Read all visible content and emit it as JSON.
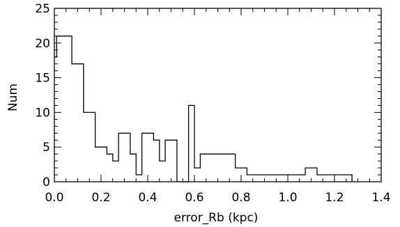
{
  "chart_data": {
    "type": "histogram",
    "title": "",
    "xlabel": "error_Rb (kpc)",
    "ylabel": "Num",
    "xlim": [
      0.0,
      1.4
    ],
    "ylim": [
      0,
      25
    ],
    "grid": false,
    "x_tick_labels": [
      "0.0",
      "0.2",
      "0.4",
      "0.6",
      "0.8",
      "1.0",
      "1.2",
      "1.4"
    ],
    "y_tick_labels": [
      "0",
      "5",
      "10",
      "15",
      "20",
      "25"
    ],
    "bin_edges": [
      0.0,
      0.01,
      0.05,
      0.075,
      0.125,
      0.175,
      0.225,
      0.25,
      0.275,
      0.325,
      0.35,
      0.375,
      0.425,
      0.45,
      0.475,
      0.525,
      0.535,
      0.575,
      0.6,
      0.625,
      0.675,
      0.725,
      0.775,
      0.825,
      0.875,
      0.925,
      0.975,
      1.025,
      1.075,
      1.1,
      1.125,
      1.175,
      1.225,
      1.275
    ],
    "counts": [
      18,
      21,
      21,
      17,
      10,
      5,
      4,
      3,
      7,
      4,
      1,
      7,
      6,
      3,
      6,
      0,
      0,
      11,
      2,
      4,
      4,
      4,
      2,
      1,
      1,
      1,
      1,
      1,
      2,
      2,
      1,
      1,
      1
    ]
  }
}
